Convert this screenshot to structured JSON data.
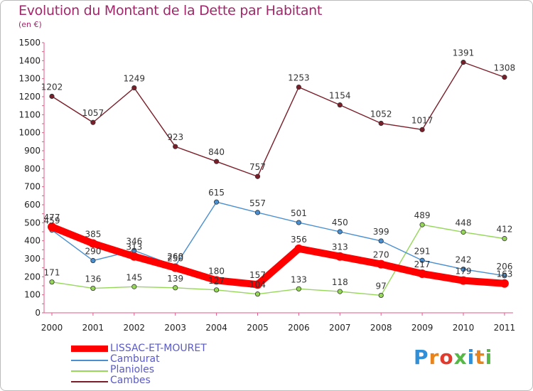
{
  "chart_data": {
    "type": "line",
    "title": "Evolution du Montant de la Dette par Habitant",
    "subtitle": "(en €)",
    "x": [
      "2000",
      "2001",
      "2002",
      "2003",
      "2004",
      "2005",
      "2006",
      "2007",
      "2008",
      "2009",
      "2010",
      "2011"
    ],
    "ylim": [
      0,
      1500
    ],
    "yticks": [
      0,
      100,
      200,
      300,
      400,
      500,
      600,
      700,
      800,
      900,
      1000,
      1100,
      1200,
      1300,
      1400,
      1500
    ],
    "series": [
      {
        "name": "LISSAC-ET-MOURET",
        "color": "#ff0000",
        "values": [
          477,
          385,
          313,
          250,
          180,
          157,
          356,
          313,
          270,
          217,
          179,
          163
        ]
      },
      {
        "name": "Camburat",
        "color": "#4a8fd0",
        "values": [
          459,
          290,
          346,
          260,
          615,
          557,
          501,
          450,
          399,
          291,
          242,
          206
        ]
      },
      {
        "name": "Planioles",
        "color": "#96d75a",
        "values": [
          171,
          136,
          145,
          139,
          127,
          104,
          133,
          118,
          97,
          489,
          448,
          412
        ]
      },
      {
        "name": "Cambes",
        "color": "#7a1e2a",
        "values": [
          1202,
          1057,
          1249,
          923,
          840,
          757,
          1253,
          1154,
          1052,
          1017,
          1391,
          1308
        ]
      }
    ],
    "grid": false,
    "legend": "bottom-left"
  },
  "logo": {
    "text": "Proxiti"
  }
}
